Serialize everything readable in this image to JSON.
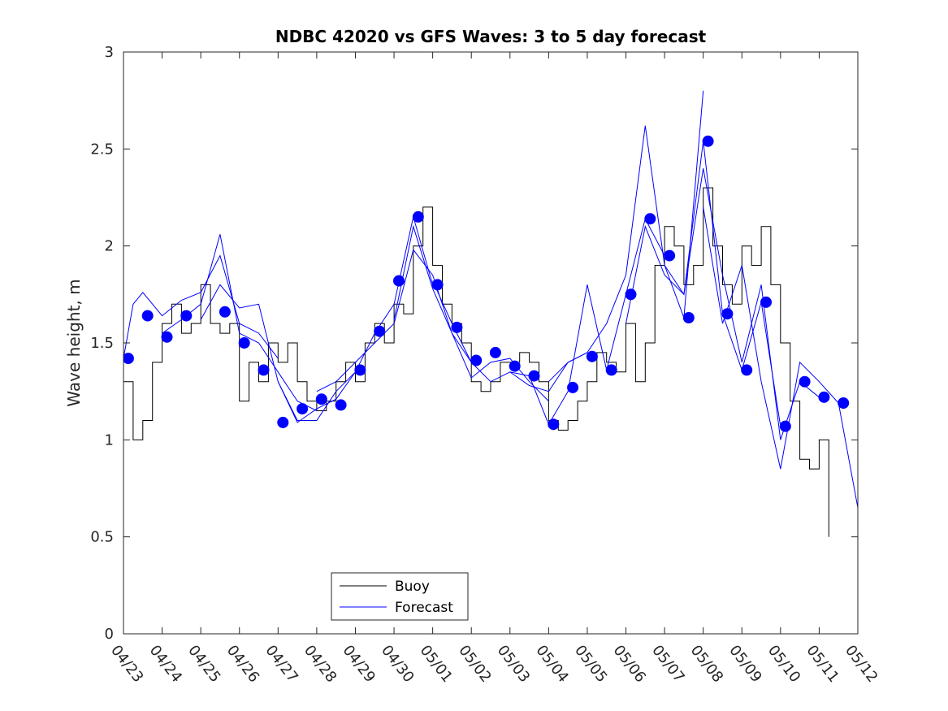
{
  "chart_data": {
    "type": "line",
    "title": "NDBC 42020 vs GFS Waves: 3 to 5 day forecast",
    "xlabel": "",
    "ylabel": "Wave height, m",
    "ylim": [
      0,
      3
    ],
    "xlim": [
      "04/23",
      "05/12"
    ],
    "yticks": [
      "0",
      "0.5",
      "1",
      "1.5",
      "2",
      "2.5",
      "3"
    ],
    "xticks": [
      "04/23",
      "04/24",
      "04/25",
      "04/26",
      "04/27",
      "04/28",
      "04/29",
      "04/30",
      "05/01",
      "05/02",
      "05/03",
      "05/04",
      "05/05",
      "05/06",
      "05/07",
      "05/08",
      "05/09",
      "05/10",
      "05/11",
      "05/12"
    ],
    "grid": false,
    "legend": {
      "position": "bottom-left",
      "entries": [
        "Buoy",
        "Forecast"
      ]
    },
    "colors": {
      "buoy": "#000000",
      "forecast": "#0000ff",
      "markers": "#0000ff"
    },
    "series": [
      {
        "name": "Buoy",
        "x": [
          "04/23 00:00",
          "04/23 06:00",
          "04/23 12:00",
          "04/23 18:00",
          "04/24 00:00",
          "04/24 06:00",
          "04/24 12:00",
          "04/24 18:00",
          "04/25 00:00",
          "04/25 06:00",
          "04/25 12:00",
          "04/25 18:00",
          "04/26 00:00",
          "04/26 06:00",
          "04/26 12:00",
          "04/26 18:00",
          "04/27 00:00",
          "04/27 06:00",
          "04/27 12:00",
          "04/27 18:00",
          "04/28 00:00",
          "04/28 06:00",
          "04/28 12:00",
          "04/28 18:00",
          "04/29 00:00",
          "04/29 06:00",
          "04/29 12:00",
          "04/29 18:00",
          "04/30 00:00",
          "04/30 06:00",
          "04/30 12:00",
          "04/30 18:00",
          "05/01 00:00",
          "05/01 06:00",
          "05/01 12:00",
          "05/01 18:00",
          "05/02 00:00",
          "05/02 06:00",
          "05/02 12:00",
          "05/02 18:00",
          "05/03 00:00",
          "05/03 06:00",
          "05/03 12:00",
          "05/03 18:00",
          "05/04 00:00",
          "05/04 06:00",
          "05/04 12:00",
          "05/04 18:00",
          "05/05 00:00",
          "05/05 06:00",
          "05/05 12:00",
          "05/05 18:00",
          "05/06 00:00",
          "05/06 06:00",
          "05/06 12:00",
          "05/06 18:00",
          "05/07 00:00",
          "05/07 06:00",
          "05/07 12:00",
          "05/07 18:00",
          "05/08 00:00",
          "05/08 06:00",
          "05/08 12:00",
          "05/08 18:00",
          "05/09 00:00",
          "05/09 06:00",
          "05/09 12:00",
          "05/09 18:00",
          "05/10 00:00",
          "05/10 06:00",
          "05/10 12:00",
          "05/10 18:00",
          "05/11 00:00",
          "05/11 06:00"
        ],
        "y": [
          1.3,
          1.0,
          1.1,
          1.4,
          1.6,
          1.7,
          1.55,
          1.6,
          1.8,
          1.6,
          1.55,
          1.6,
          1.2,
          1.4,
          1.3,
          1.5,
          1.4,
          1.5,
          1.3,
          1.2,
          1.15,
          1.2,
          1.3,
          1.4,
          1.3,
          1.5,
          1.6,
          1.5,
          1.7,
          1.65,
          2.0,
          2.2,
          1.9,
          1.7,
          1.6,
          1.5,
          1.3,
          1.25,
          1.3,
          1.4,
          1.4,
          1.45,
          1.4,
          1.3,
          1.1,
          1.05,
          1.1,
          1.2,
          1.3,
          1.45,
          1.4,
          1.35,
          1.6,
          1.3,
          1.5,
          1.9,
          2.1,
          2.0,
          1.8,
          1.9,
          2.3,
          2.0,
          1.8,
          1.7,
          2.0,
          1.9,
          2.1,
          1.8,
          1.5,
          1.2,
          0.9,
          0.85,
          1.0,
          0.5
        ]
      },
      {
        "name": "Forecast",
        "runs": [
          {
            "x": [
              "04/23 00:00",
              "04/23 06:00",
              "04/23 12:00",
              "04/24 00:00",
              "04/24 12:00",
              "04/25 00:00",
              "04/25 12:00",
              "04/26 00:00",
              "04/26 12:00",
              "04/27 00:00"
            ],
            "y": [
              1.42,
              1.7,
              1.76,
              1.64,
              1.72,
              1.76,
              1.95,
              1.6,
              1.55,
              1.42
            ]
          },
          {
            "x": [
              "04/24 00:00",
              "04/24 12:00",
              "04/25 00:00",
              "04/25 12:00",
              "04/26 00:00",
              "04/26 12:00",
              "04/27 00:00",
              "04/27 12:00",
              "04/28 00:00"
            ],
            "y": [
              1.55,
              1.62,
              1.7,
              2.06,
              1.55,
              1.5,
              1.35,
              1.2,
              1.15
            ]
          },
          {
            "x": [
              "04/25 00:00",
              "04/25 12:00",
              "04/26 00:00",
              "04/26 12:00",
              "04/27 00:00",
              "04/27 12:00",
              "04/28 00:00",
              "04/28 12:00",
              "04/29 00:00"
            ],
            "y": [
              1.62,
              1.8,
              1.68,
              1.7,
              1.3,
              1.1,
              1.1,
              1.25,
              1.35
            ]
          },
          {
            "x": [
              "04/27 00:00",
              "04/27 12:00",
              "04/28 00:00",
              "04/28 12:00",
              "04/29 00:00",
              "04/29 12:00",
              "04/30 00:00",
              "04/30 12:00",
              "05/01 00:00"
            ],
            "y": [
              1.3,
              1.09,
              1.16,
              1.21,
              1.35,
              1.55,
              1.7,
              2.15,
              1.8
            ]
          },
          {
            "x": [
              "04/28 00:00",
              "04/28 12:00",
              "04/29 00:00",
              "04/29 12:00",
              "04/30 00:00",
              "04/30 12:00",
              "05/01 00:00",
              "05/01 12:00",
              "05/02 00:00"
            ],
            "y": [
              1.25,
              1.3,
              1.4,
              1.5,
              1.6,
              1.98,
              1.85,
              1.55,
              1.4
            ]
          },
          {
            "x": [
              "04/30 00:00",
              "04/30 12:00",
              "05/01 00:00",
              "05/01 12:00",
              "05/02 00:00",
              "05/02 12:00",
              "05/03 00:00",
              "05/03 12:00",
              "05/04 00:00"
            ],
            "y": [
              1.62,
              2.1,
              1.78,
              1.55,
              1.32,
              1.4,
              1.42,
              1.3,
              1.2
            ]
          },
          {
            "x": [
              "05/01 00:00",
              "05/01 12:00",
              "05/02 00:00",
              "05/02 12:00",
              "05/03 00:00",
              "05/03 12:00",
              "05/04 00:00",
              "05/04 12:00",
              "05/05 00:00"
            ],
            "y": [
              1.82,
              1.6,
              1.4,
              1.3,
              1.35,
              1.28,
              1.25,
              1.4,
              1.45
            ]
          },
          {
            "x": [
              "05/03 00:00",
              "05/03 12:00",
              "05/04 00:00",
              "05/04 12:00",
              "05/05 00:00",
              "05/05 12:00",
              "05/06 00:00",
              "05/06 12:00",
              "05/07 00:00"
            ],
            "y": [
              1.35,
              1.33,
              1.08,
              1.25,
              1.8,
              1.36,
              1.75,
              2.14,
              1.95
            ]
          },
          {
            "x": [
              "05/04 00:00",
              "05/04 12:00",
              "05/05 00:00",
              "05/05 12:00",
              "05/06 00:00",
              "05/06 12:00",
              "05/07 00:00",
              "05/07 12:00",
              "05/08 00:00"
            ],
            "y": [
              1.3,
              1.4,
              1.45,
              1.6,
              1.85,
              2.62,
              1.9,
              1.63,
              2.8
            ]
          },
          {
            "x": [
              "05/06 00:00",
              "05/06 12:00",
              "05/07 00:00",
              "05/07 12:00",
              "05/08 00:00",
              "05/08 12:00",
              "05/09 00:00",
              "05/09 12:00",
              "05/10 00:00"
            ],
            "y": [
              1.6,
              2.1,
              1.85,
              1.75,
              2.54,
              1.65,
              1.36,
              1.71,
              1.07
            ]
          },
          {
            "x": [
              "05/07 00:00",
              "05/07 12:00",
              "05/08 00:00",
              "05/08 12:00",
              "05/09 00:00",
              "05/09 12:00",
              "05/10 00:00",
              "05/10 12:00",
              "05/11 00:00"
            ],
            "y": [
              1.9,
              1.75,
              2.4,
              1.85,
              1.4,
              1.8,
              1.0,
              1.3,
              1.22
            ]
          },
          {
            "x": [
              "05/08 00:00",
              "05/08 12:00",
              "05/09 00:00",
              "05/09 12:00",
              "05/10 00:00",
              "05/10 12:00",
              "05/11 00:00",
              "05/11 12:00",
              "05/12 00:00"
            ],
            "y": [
              2.2,
              1.6,
              1.9,
              1.3,
              0.85,
              1.4,
              1.3,
              1.19,
              0.65
            ]
          }
        ]
      },
      {
        "name": "Forecast markers",
        "x": [
          "04/23 03:00",
          "04/23 15:00",
          "04/24 03:00",
          "04/24 15:00",
          "04/25 15:00",
          "04/26 03:00",
          "04/26 15:00",
          "04/27 03:00",
          "04/27 15:00",
          "04/28 03:00",
          "04/28 15:00",
          "04/29 03:00",
          "04/29 15:00",
          "04/30 03:00",
          "04/30 15:00",
          "05/01 03:00",
          "05/01 15:00",
          "05/02 03:00",
          "05/02 15:00",
          "05/03 03:00",
          "05/03 15:00",
          "05/04 03:00",
          "05/04 15:00",
          "05/05 03:00",
          "05/05 15:00",
          "05/06 03:00",
          "05/06 15:00",
          "05/07 03:00",
          "05/07 15:00",
          "05/08 03:00",
          "05/08 15:00",
          "05/09 03:00",
          "05/09 15:00",
          "05/10 03:00",
          "05/10 15:00",
          "05/11 03:00",
          "05/11 15:00"
        ],
        "y": [
          1.42,
          1.64,
          1.53,
          1.64,
          1.66,
          1.5,
          1.36,
          1.09,
          1.16,
          1.21,
          1.18,
          1.36,
          1.56,
          1.82,
          2.15,
          1.8,
          1.58,
          1.41,
          1.45,
          1.38,
          1.33,
          1.08,
          1.27,
          1.43,
          1.36,
          1.75,
          2.14,
          1.95,
          1.63,
          2.54,
          1.65,
          1.36,
          1.71,
          1.07,
          1.3,
          1.22,
          1.19
        ]
      }
    ]
  }
}
